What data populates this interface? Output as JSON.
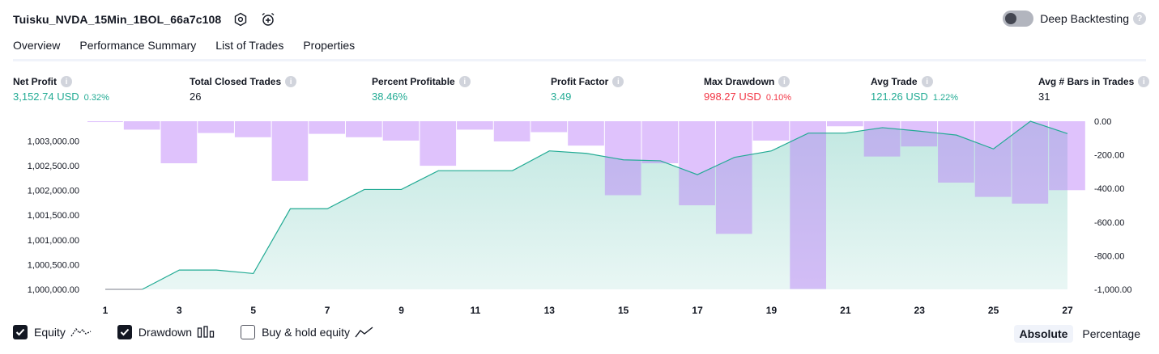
{
  "header": {
    "strategy_name": "Tuisku_NVDA_15Min_1BOL_66a7c108",
    "deep_backtesting_label": "Deep Backtesting",
    "deep_backtesting_enabled": false
  },
  "tabs": [
    {
      "label": "Overview",
      "active": true
    },
    {
      "label": "Performance Summary",
      "active": false
    },
    {
      "label": "List of Trades",
      "active": false
    },
    {
      "label": "Properties",
      "active": false
    }
  ],
  "metrics": [
    {
      "label": "Net Profit",
      "value": "3,152.74 USD",
      "pct": "0.32%",
      "color": "#22ab94"
    },
    {
      "label": "Total Closed Trades",
      "value": "26",
      "pct": "",
      "color": "#131722"
    },
    {
      "label": "Percent Profitable",
      "value": "38.46%",
      "pct": "",
      "color": "#22ab94"
    },
    {
      "label": "Profit Factor",
      "value": "3.49",
      "pct": "",
      "color": "#22ab94"
    },
    {
      "label": "Max Drawdown",
      "value": "998.27 USD",
      "pct": "0.10%",
      "color": "#f23645"
    },
    {
      "label": "Avg Trade",
      "value": "121.26 USD",
      "pct": "1.22%",
      "color": "#22ab94"
    },
    {
      "label": "Avg # Bars in Trades",
      "value": "31",
      "pct": "",
      "color": "#131722"
    }
  ],
  "legend": {
    "equity": {
      "label": "Equity",
      "checked": true
    },
    "drawdown": {
      "label": "Drawdown",
      "checked": true
    },
    "buy_hold": {
      "label": "Buy & hold equity",
      "checked": false
    }
  },
  "mode": {
    "absolute": "Absolute",
    "percentage": "Percentage",
    "selected": "Absolute"
  },
  "chart_data": {
    "type": "area",
    "x_ticks": [
      1,
      3,
      5,
      7,
      9,
      11,
      13,
      15,
      17,
      19,
      21,
      23,
      25,
      27
    ],
    "left_axis": {
      "ticks": [
        "1,000,000.00",
        "1,000,500.00",
        "1,001,000.00",
        "1,001,500.00",
        "1,002,000.00",
        "1,002,500.00",
        "1,003,000.00"
      ],
      "ylim": [
        1000000,
        1003400
      ]
    },
    "right_axis": {
      "ticks": [
        "0.00",
        "-200.00",
        "-400.00",
        "-600.00",
        "-800.00",
        "-1,000.00"
      ],
      "ylim": [
        -1000,
        0
      ]
    },
    "equity": {
      "x": [
        1,
        2,
        3,
        4,
        5,
        6,
        7,
        8,
        9,
        10,
        11,
        12,
        13,
        14,
        15,
        16,
        17,
        18,
        19,
        20,
        21,
        22,
        23,
        24,
        25,
        26,
        27
      ],
      "values": [
        1000000,
        1000000,
        1000390,
        1000390,
        1000320,
        1001630,
        1001630,
        1002020,
        1002020,
        1002400,
        1002400,
        1002400,
        1002800,
        1002750,
        1002620,
        1002600,
        1002320,
        1002670,
        1002800,
        1003160,
        1003160,
        1003270,
        1003200,
        1003120,
        1002840,
        1003400,
        1003150
      ]
    },
    "drawdown": {
      "x": [
        1,
        2,
        3,
        4,
        5,
        6,
        7,
        8,
        9,
        10,
        11,
        12,
        13,
        14,
        15,
        16,
        17,
        18,
        19,
        20,
        21,
        22,
        23,
        24,
        25,
        26,
        27
      ],
      "values": [
        -5,
        -50,
        -250,
        -70,
        -95,
        -355,
        -75,
        -95,
        -115,
        -265,
        -50,
        -120,
        -65,
        -145,
        -440,
        -250,
        -500,
        -670,
        -115,
        -998,
        -30,
        -210,
        -150,
        -365,
        -450,
        -490,
        -410
      ]
    },
    "colors": {
      "equity_line": "#22ab94",
      "equity_fill": "#22ab94",
      "drawdown": "#b877f8"
    }
  }
}
